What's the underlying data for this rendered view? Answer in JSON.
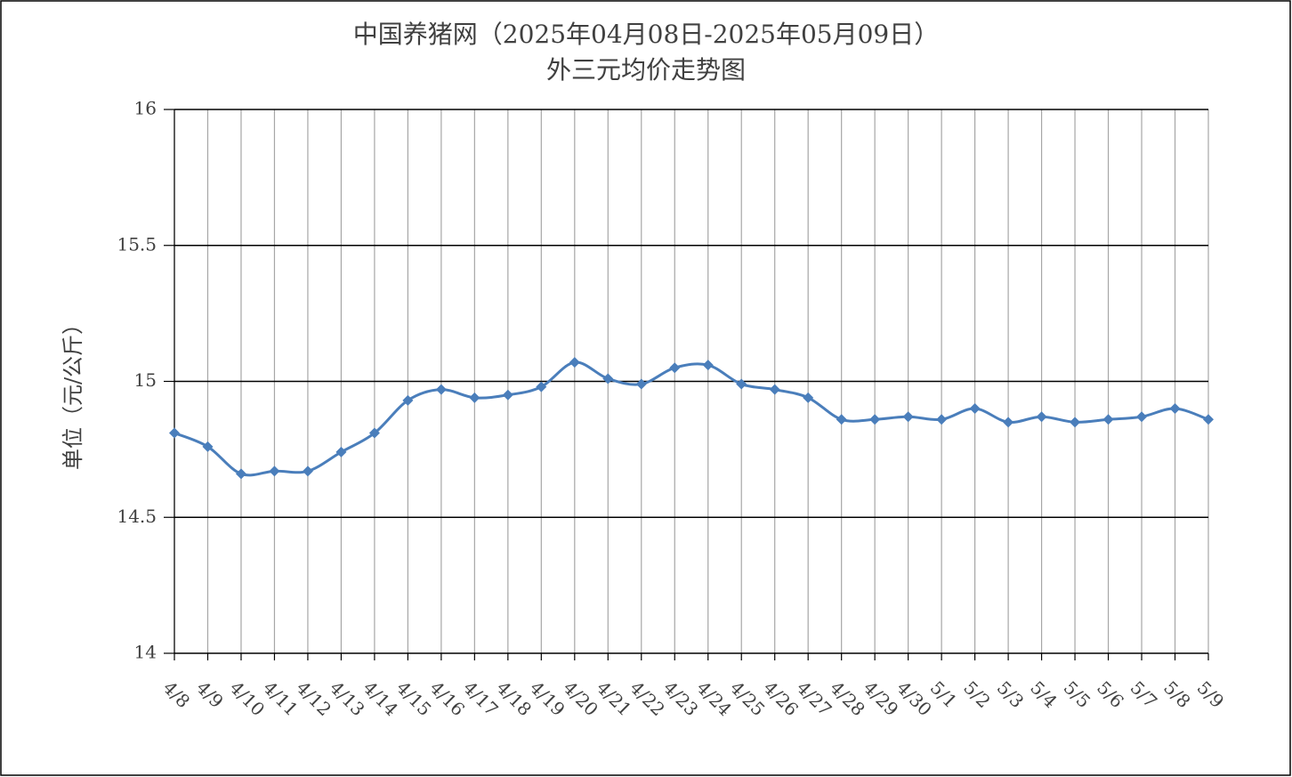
{
  "chart_data": {
    "type": "line",
    "title": "中国养猪网（2025年04月08日-2025年05月09日）",
    "subtitle": "外三元均价走势图",
    "y_label": "单位（元/公斤）",
    "categories": [
      "4/8",
      "4/9",
      "4/10",
      "4/11",
      "4/12",
      "4/13",
      "4/14",
      "4/15",
      "4/16",
      "4/17",
      "4/18",
      "4/19",
      "4/20",
      "4/21",
      "4/22",
      "4/23",
      "4/24",
      "4/25",
      "4/26",
      "4/27",
      "4/28",
      "4/29",
      "4/30",
      "5/1",
      "5/2",
      "5/3",
      "5/4",
      "5/5",
      "5/6",
      "5/7",
      "5/8",
      "5/9"
    ],
    "values": [
      14.81,
      14.76,
      14.66,
      14.67,
      14.67,
      14.74,
      14.81,
      14.93,
      14.97,
      14.94,
      14.95,
      14.98,
      15.07,
      15.01,
      14.99,
      15.05,
      15.06,
      14.99,
      14.97,
      14.94,
      14.86,
      14.86,
      14.87,
      14.86,
      14.9,
      14.85,
      14.87,
      14.85,
      14.86,
      14.87,
      14.9,
      14.86
    ],
    "color": "#4a7ebb",
    "ylim": [
      14,
      16
    ],
    "yticks": [
      14,
      14.5,
      15,
      15.5,
      16
    ],
    "grid": true
  }
}
